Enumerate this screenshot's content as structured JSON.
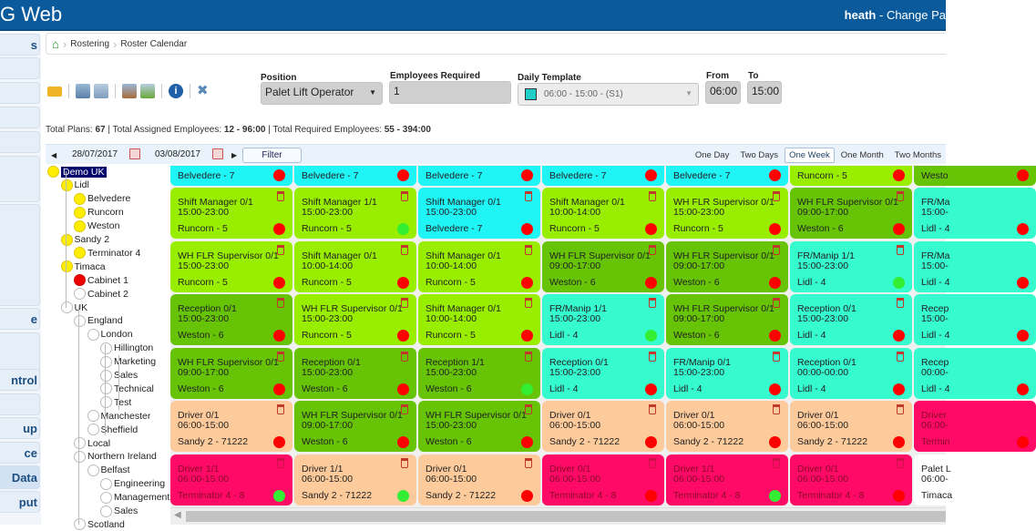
{
  "header": {
    "app_title": "G Web",
    "user": "heath",
    "separator": "-",
    "change_password": "Change Pa"
  },
  "sidebar": {
    "items": [
      "s",
      "",
      "",
      "",
      "",
      "",
      "",
      "e",
      "",
      "ntrol",
      "",
      "up",
      "ce",
      "Data",
      "put"
    ],
    "active_index": 13
  },
  "breadcrumb": [
    "Rostering",
    "Roster Calendar"
  ],
  "toolbar": {
    "icons": [
      "open-folder-icon",
      "export-icon",
      "import-icon",
      "export-all-icon",
      "import-all-icon",
      "info-icon",
      "tools-icon"
    ]
  },
  "form": {
    "position_label": "Position",
    "position_value": "Palet Lift Operator",
    "employees_label": "Employees Required",
    "employees_value": "1",
    "template_label": "Daily Template",
    "template_value": "06:00 - 15:00 - (S1)",
    "template_color": "#1fcfc8",
    "from_label": "From",
    "from_value": "06:00",
    "to_label": "To",
    "to_value": "15:00"
  },
  "totals": {
    "plans_label": "Total Plans:",
    "plans": "67",
    "assigned_label": "| Total Assigned Employees:",
    "assigned": "12 - 96:00",
    "required_label": "| Total Required Employees:",
    "required": "55 - 394:00"
  },
  "nav": {
    "start_date": "28/07/2017",
    "end_date": "03/08/2017",
    "filter": "Filter",
    "views": [
      "One Day",
      "Two Days",
      "One Week",
      "One Month",
      "Two Months"
    ],
    "active_view": "One Week"
  },
  "tree": [
    {
      "label": "Demo UK",
      "level": 0,
      "status": "yellow",
      "selected": true
    },
    {
      "label": "Lidl",
      "level": 1,
      "status": "yellow"
    },
    {
      "label": "Belvedere",
      "level": 2,
      "status": "yellow"
    },
    {
      "label": "Runcorn",
      "level": 2,
      "status": "yellow"
    },
    {
      "label": "Weston",
      "level": 2,
      "status": "yellow"
    },
    {
      "label": "Sandy 2",
      "level": 1,
      "status": "yellow"
    },
    {
      "label": "Terminator 4",
      "level": 2,
      "status": "yellow"
    },
    {
      "label": "Timaca",
      "level": 1,
      "status": "yellow"
    },
    {
      "label": "Cabinet 1",
      "level": 2,
      "status": "red"
    },
    {
      "label": "Cabinet 2",
      "level": 2,
      "status": "none"
    },
    {
      "label": "UK",
      "level": 1,
      "status": "none"
    },
    {
      "label": "England",
      "level": 2,
      "status": "none"
    },
    {
      "label": "London",
      "level": 3,
      "status": "none"
    },
    {
      "label": "Hillington",
      "level": 4,
      "status": "none"
    },
    {
      "label": "Marketing",
      "level": 4,
      "status": "none"
    },
    {
      "label": "Sales",
      "level": 4,
      "status": "none"
    },
    {
      "label": "Technical",
      "level": 4,
      "status": "none"
    },
    {
      "label": "Test",
      "level": 4,
      "status": "none"
    },
    {
      "label": "Manchester",
      "level": 3,
      "status": "none"
    },
    {
      "label": "Sheffield",
      "level": 3,
      "status": "none"
    },
    {
      "label": "Local",
      "level": 2,
      "status": "none"
    },
    {
      "label": "Northern Ireland",
      "level": 2,
      "status": "none"
    },
    {
      "label": "Belfast",
      "level": 3,
      "status": "none"
    },
    {
      "label": "Engineering",
      "level": 4,
      "status": "none"
    },
    {
      "label": "Management",
      "level": 4,
      "status": "none"
    },
    {
      "label": "Sales",
      "level": 4,
      "status": "none"
    },
    {
      "label": "Scotland",
      "level": 2,
      "status": "none"
    }
  ],
  "colors": {
    "cyan": "#1ff5f5",
    "lime": "#99ee00",
    "green": "#66c305",
    "teal": "#35fbcf",
    "peach": "#fdcb9b",
    "pink": "#ff0a66",
    "white": "#ffffff",
    "dot_red": "#ff0000",
    "dot_green": "#33ee33"
  },
  "grid": {
    "top_row": [
      {
        "loc": "Belvedere - 7",
        "color": "cyan",
        "dot": "red"
      },
      {
        "loc": "Belvedere - 7",
        "color": "cyan",
        "dot": "red"
      },
      {
        "loc": "Belvedere - 7",
        "color": "cyan",
        "dot": "red"
      },
      {
        "loc": "Belvedere - 7",
        "color": "cyan",
        "dot": "red"
      },
      {
        "loc": "Belvedere - 7",
        "color": "cyan",
        "dot": "red"
      },
      {
        "loc": "Runcorn - 5",
        "color": "lime",
        "dot": "red"
      },
      {
        "loc": "Westo",
        "color": "green",
        "dot": "red"
      }
    ],
    "rows": [
      [
        {
          "title": "Shift Manager 0/1",
          "time": "15:00-23:00",
          "loc": "Runcorn - 5",
          "color": "lime",
          "dot": "red"
        },
        {
          "title": "Shift Manager 1/1",
          "time": "15:00-23:00",
          "loc": "Runcorn - 5",
          "color": "lime",
          "dot": "green"
        },
        {
          "title": "Shift Manager 0/1",
          "time": "15:00-23:00",
          "loc": "Belvedere - 7",
          "color": "cyan",
          "dot": "red"
        },
        {
          "title": "Shift Manager 0/1",
          "time": "10:00-14:00",
          "loc": "Runcorn - 5",
          "color": "lime",
          "dot": "red"
        },
        {
          "title": "WH FLR Supervisor 0/1",
          "time": "15:00-23:00",
          "loc": "Runcorn - 5",
          "color": "lime",
          "dot": "red"
        },
        {
          "title": "WH FLR Supervisor 0/1",
          "time": "09:00-17:00",
          "loc": "Weston - 6",
          "color": "green",
          "dot": "red"
        },
        {
          "title": "FR/Ma",
          "time": "15:00-",
          "loc": "Lidl - 4",
          "color": "teal",
          "dot": "red"
        }
      ],
      [
        {
          "title": "WH FLR Supervisor 0/1",
          "time": "15:00-23:00",
          "loc": "Runcorn - 5",
          "color": "lime",
          "dot": "red"
        },
        {
          "title": "Shift Manager 0/1",
          "time": "10:00-14:00",
          "loc": "Runcorn - 5",
          "color": "lime",
          "dot": "red"
        },
        {
          "title": "Shift Manager 0/1",
          "time": "10:00-14:00",
          "loc": "Runcorn - 5",
          "color": "lime",
          "dot": "red"
        },
        {
          "title": "WH FLR Supervisor 0/1",
          "time": "09:00-17:00",
          "loc": "Weston - 6",
          "color": "green",
          "dot": "red"
        },
        {
          "title": "WH FLR Supervisor 0/1",
          "time": "09:00-17:00",
          "loc": "Weston - 6",
          "color": "green",
          "dot": "red"
        },
        {
          "title": "FR/Manip 1/1",
          "time": "15:00-23:00",
          "loc": "Lidl - 4",
          "color": "teal",
          "dot": "green"
        },
        {
          "title": "FR/Ma",
          "time": "15:00-",
          "loc": "Lidl - 4",
          "color": "teal",
          "dot": "red"
        }
      ],
      [
        {
          "title": "Reception 0/1",
          "time": "15:00-23:00",
          "loc": "Weston - 6",
          "color": "green",
          "dot": "red"
        },
        {
          "title": "WH FLR Supervisor 0/1",
          "time": "15:00-23:00",
          "loc": "Runcorn - 5",
          "color": "lime",
          "dot": "red"
        },
        {
          "title": "Shift Manager 0/1",
          "time": "10:00-14:00",
          "loc": "Runcorn - 5",
          "color": "lime",
          "dot": "red"
        },
        {
          "title": "FR/Manip 1/1",
          "time": "15:00-23:00",
          "loc": "Lidl - 4",
          "color": "teal",
          "dot": "green"
        },
        {
          "title": "WH FLR Supervisor 0/1",
          "time": "09:00-17:00",
          "loc": "Weston - 6",
          "color": "green",
          "dot": "red"
        },
        {
          "title": "Reception 0/1",
          "time": "15:00-23:00",
          "loc": "Lidl - 4",
          "color": "teal",
          "dot": "red"
        },
        {
          "title": "Recep",
          "time": "15:00-",
          "loc": "Lidl - 4",
          "color": "teal",
          "dot": "red"
        }
      ],
      [
        {
          "title": "WH FLR Supervisor 0/1",
          "time": "09:00-17:00",
          "loc": "Weston - 6",
          "color": "green",
          "dot": "red"
        },
        {
          "title": "Reception 0/1",
          "time": "15:00-23:00",
          "loc": "Weston - 6",
          "color": "green",
          "dot": "red"
        },
        {
          "title": "Reception 1/1",
          "time": "15:00-23:00",
          "loc": "Weston - 6",
          "color": "green",
          "dot": "green"
        },
        {
          "title": "Reception 0/1",
          "time": "15:00-23:00",
          "loc": "Lidl - 4",
          "color": "teal",
          "dot": "red"
        },
        {
          "title": "FR/Manip 0/1",
          "time": "15:00-23:00",
          "loc": "Lidl - 4",
          "color": "teal",
          "dot": "red"
        },
        {
          "title": "Reception 0/1",
          "time": "00:00-00:00",
          "loc": "Lidl - 4",
          "color": "teal",
          "dot": "red"
        },
        {
          "title": "Recep",
          "time": "00:00-",
          "loc": "Lidl - 4",
          "color": "teal",
          "dot": "red"
        }
      ],
      [
        {
          "title": "Driver 0/1",
          "time": "06:00-15:00",
          "loc": "Sandy 2 - 71222",
          "color": "peach",
          "dot": "red"
        },
        {
          "title": "WH FLR Supervisor 0/1",
          "time": "09:00-17:00",
          "loc": "Weston - 6",
          "color": "green",
          "dot": "red"
        },
        {
          "title": "WH FLR Supervisor 0/1",
          "time": "15:00-23:00",
          "loc": "Weston - 6",
          "color": "green",
          "dot": "red"
        },
        {
          "title": "Driver 0/1",
          "time": "06:00-15:00",
          "loc": "Sandy 2 - 71222",
          "color": "peach",
          "dot": "red"
        },
        {
          "title": "Driver 0/1",
          "time": "06:00-15:00",
          "loc": "Sandy 2 - 71222",
          "color": "peach",
          "dot": "red"
        },
        {
          "title": "Driver 0/1",
          "time": "06:00-15:00",
          "loc": "Sandy 2 - 71222",
          "color": "peach",
          "dot": "red"
        },
        {
          "title": "Driver",
          "time": "06:00-",
          "loc": "Termin",
          "color": "pink",
          "dot": "red"
        }
      ],
      [
        {
          "title": "Driver 1/1",
          "time": "06:00-15:00",
          "loc": "Terminator 4 - 8",
          "color": "pink",
          "dot": "green"
        },
        {
          "title": "Driver 1/1",
          "time": "06:00-15:00",
          "loc": "Sandy 2 - 71222",
          "color": "peach",
          "dot": "green"
        },
        {
          "title": "Driver 0/1",
          "time": "06:00-15:00",
          "loc": "Sandy 2 - 71222",
          "color": "peach",
          "dot": "red"
        },
        {
          "title": "Driver 0/1",
          "time": "06:00-15:00",
          "loc": "Terminator 4 - 8",
          "color": "pink",
          "dot": "red"
        },
        {
          "title": "Driver 1/1",
          "time": "06:00-15:00",
          "loc": "Terminator 4 - 8",
          "color": "pink",
          "dot": "green"
        },
        {
          "title": "Driver 0/1",
          "time": "06:00-15:00",
          "loc": "Terminator 4 - 8",
          "color": "pink",
          "dot": "red"
        },
        {
          "title": "Palet L",
          "time": "06:00-",
          "loc": "Timaca",
          "color": "white",
          "dot": "none"
        }
      ]
    ]
  }
}
